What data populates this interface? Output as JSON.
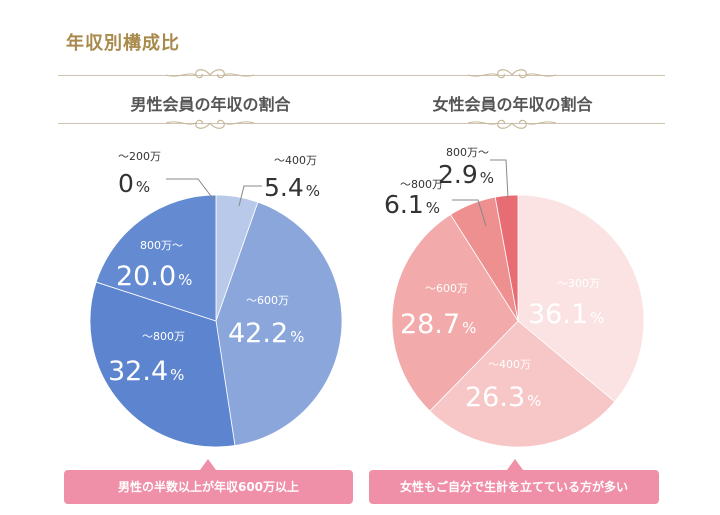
{
  "page_title": "年収別構成比",
  "chart_data": [
    {
      "type": "pie",
      "title": "男性会員の年収の割合",
      "start_angle_deg": 0,
      "direction": "clockwise",
      "slices": [
        {
          "label": "〜200万",
          "value": 0.0,
          "display": "0",
          "color": "#c9d5ee"
        },
        {
          "label": "〜400万",
          "value": 5.4,
          "display": "5.4",
          "color": "#b9c9ea"
        },
        {
          "label": "〜600万",
          "value": 42.2,
          "display": "42.2",
          "color": "#8aa6db"
        },
        {
          "label": "〜800万",
          "value": 32.4,
          "display": "32.4",
          "color": "#5c84cf"
        },
        {
          "label": "800万〜",
          "value": 20.0,
          "display": "20.0",
          "color": "#648bd2"
        }
      ],
      "percent_sign": "%",
      "callout": "男性の半数以上が年収600万以上"
    },
    {
      "type": "pie",
      "title": "女性会員の年収の割合",
      "start_angle_deg": 0,
      "direction": "clockwise",
      "slices": [
        {
          "label": "〜300万",
          "value": 36.1,
          "display": "36.1",
          "color": "#fbe3e3"
        },
        {
          "label": "〜400万",
          "value": 26.3,
          "display": "26.3",
          "color": "#f7c6c6"
        },
        {
          "label": "〜600万",
          "value": 28.7,
          "display": "28.7",
          "color": "#f3aaaa"
        },
        {
          "label": "〜800万",
          "value": 6.1,
          "display": "6.1",
          "color": "#ee9090"
        },
        {
          "label": "800万〜",
          "value": 2.9,
          "display": "2.9",
          "color": "#e86c74"
        }
      ],
      "percent_sign": "%",
      "callout": "女性もご自分で生計を立てている方が多い"
    }
  ]
}
